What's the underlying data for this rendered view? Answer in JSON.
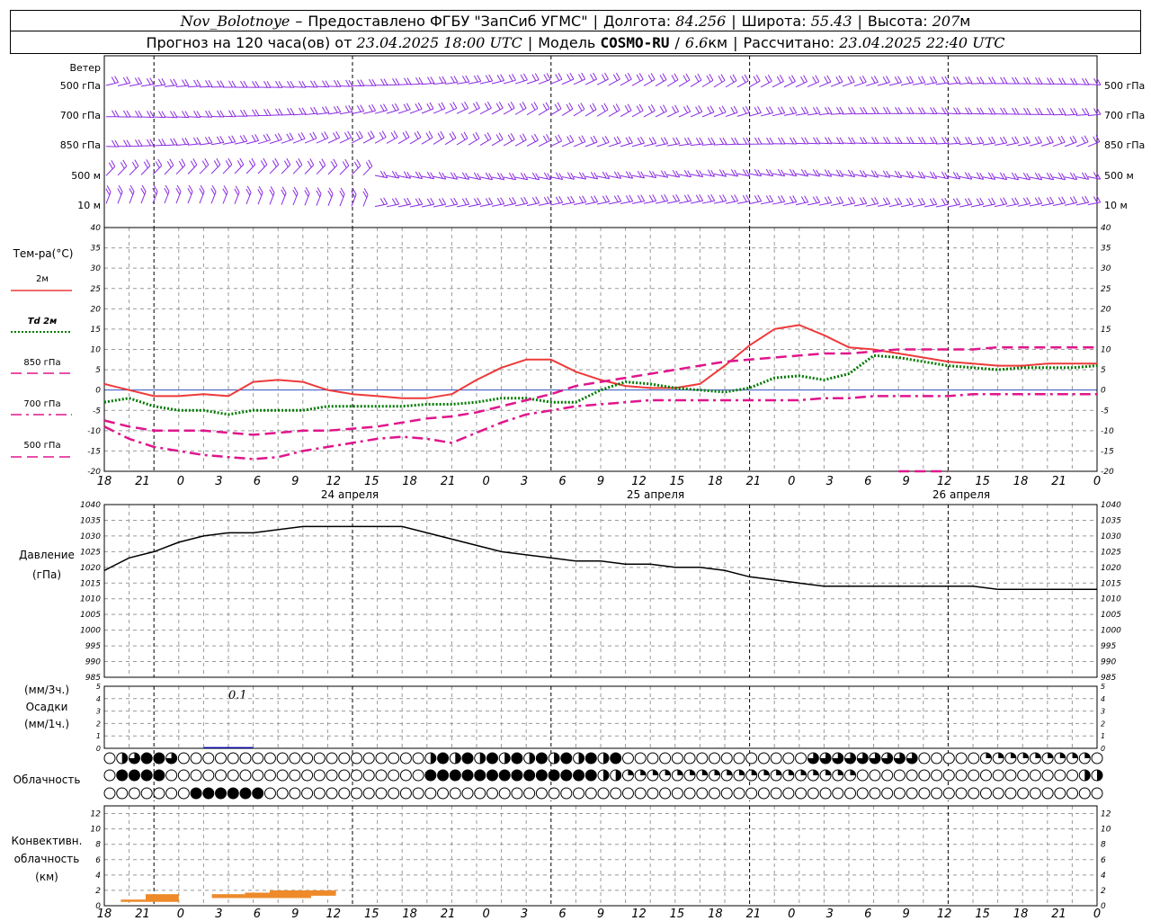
{
  "header": {
    "station": "Nov_Bolotnoye",
    "provider": "Предоставлено ФГБУ \"ЗапСиб УГМС\"",
    "lon_label": "Долгота:",
    "lon_value": "84.256",
    "lat_label": "Широта:",
    "lat_value": "55.43",
    "alt_label": "Высота:",
    "alt_value": "207",
    "alt_unit": "м",
    "forecast_label": "Прогноз на 120 часа(ов) от",
    "forecast_start": "23.04.2025 18:00 UTC",
    "model_label": "Модель",
    "model_name": "COSMO-RU",
    "model_res": "6.6",
    "model_res_unit": "км",
    "calc_label": "Рассчитано:",
    "calc_time": "23.04.2025 22:40 UTC"
  },
  "labels": {
    "wind": "Ветер",
    "wind_levels": [
      "500 гПа",
      "700 гПа",
      "850 гПа",
      "500 м",
      "10 м"
    ],
    "temp": "Тем-ра(°C)",
    "temp_series": [
      "2м",
      "Td 2м",
      "850 гПа",
      "700 гПа",
      "500 гПа"
    ],
    "pressure": "Давление",
    "pressure_unit": "(гПа)",
    "precip_unit_top": "(мм/3ч.)",
    "precip": "Осадки",
    "precip_unit_bottom": "(мм/1ч.)",
    "precip_annotation": "0.1",
    "cloud": "Облачность",
    "conv_line1": "Конвективн.",
    "conv_line2": "облачность",
    "conv_unit": "(км)"
  },
  "x_axis": {
    "hour_labels": [
      "18",
      "21",
      "0",
      "3",
      "6",
      "9",
      "12",
      "15",
      "18",
      "21",
      "0",
      "3",
      "6",
      "9",
      "12",
      "15",
      "18",
      "21",
      "0",
      "3",
      "6",
      "9",
      "12",
      "15",
      "18",
      "21",
      "0"
    ],
    "day_labels": [
      "24 апреля",
      "25 апреля",
      "26 апреля"
    ]
  },
  "colors": {
    "wind": "#8a2be2",
    "t2m": "#ee3a3a",
    "td2m": "#007a00",
    "t850": "#e0158c",
    "t700": "#e0158c",
    "t500": "#e0158c",
    "pressure": "#000000",
    "precip": "#0000aa",
    "conv": "#ee8a2a",
    "cloud_fill": "#000000"
  },
  "chart_data": [
    {
      "type": "line",
      "name": "Тем-ра(°C)",
      "x_hours": [
        0,
        3,
        6,
        9,
        12,
        15,
        18,
        21,
        24,
        27,
        30,
        33,
        36,
        39,
        42,
        45,
        48,
        51,
        54,
        57,
        60,
        63,
        66,
        69,
        72,
        75,
        78,
        81,
        84,
        87,
        90,
        93,
        96,
        99,
        102,
        105,
        108,
        111,
        114,
        117,
        120
      ],
      "ylim": [
        -20,
        40
      ],
      "yticks": [
        -20,
        -15,
        -10,
        -5,
        0,
        5,
        10,
        15,
        20,
        25,
        30,
        35,
        40
      ],
      "series": [
        {
          "name": "2м",
          "style": "solid",
          "values": [
            1.5,
            0,
            -1.5,
            -1.5,
            -1,
            -1.5,
            2,
            2.5,
            2,
            0,
            -1,
            -1.5,
            -2,
            -2,
            -1,
            2.5,
            5.5,
            7.5,
            7.5,
            4.5,
            2.5,
            1,
            0.5,
            0.5,
            1.5,
            6,
            11,
            15,
            16,
            13.5,
            10.5,
            10,
            9,
            8,
            7,
            6.5,
            6,
            6,
            6.5,
            6.5,
            6.5
          ]
        },
        {
          "name": "Td 2м",
          "style": "dotted",
          "values": [
            -3,
            -2,
            -4,
            -5,
            -5,
            -6,
            -5,
            -5,
            -5,
            -4,
            -4,
            -4,
            -4,
            -3.5,
            -3.5,
            -3,
            -2,
            -2,
            -3,
            -3,
            0,
            2,
            1.5,
            0.5,
            0,
            -0.5,
            0.5,
            3,
            3.5,
            2.5,
            4,
            8.5,
            8,
            7,
            6,
            5.5,
            5,
            5.5,
            5.5,
            5.5,
            6
          ]
        },
        {
          "name": "850 гПа",
          "style": "dashed",
          "values": [
            -7.5,
            -9,
            -10,
            -10,
            -10,
            -10.5,
            -11,
            -10.5,
            -10,
            -10,
            -9.5,
            -9,
            -8,
            -7,
            -6.5,
            -5.5,
            -4,
            -2.5,
            -1,
            1,
            2,
            3,
            4,
            5,
            6,
            7,
            7.5,
            8,
            8.5,
            9,
            9,
            9.5,
            10,
            10,
            10,
            10,
            10.5,
            10.5,
            10.5,
            10.5,
            10.5
          ]
        },
        {
          "name": "700 гПа",
          "style": "dashdot",
          "values": [
            -9,
            -12,
            -14,
            -15,
            -16,
            -16.5,
            -17,
            -16.5,
            -15,
            -14,
            -13,
            -12,
            -11.5,
            -12,
            -13,
            -10.5,
            -8,
            -6,
            -5,
            -4,
            -3.5,
            -3,
            -2.5,
            -2.5,
            -2.5,
            -2.5,
            -2.5,
            -2.5,
            -2.5,
            -2,
            -2,
            -1.5,
            -1.5,
            -1.5,
            -1.5,
            -1,
            -1,
            -1,
            -1,
            -1,
            -1
          ]
        },
        {
          "name": "500 гПа",
          "style": "dashed",
          "values": [
            null,
            null,
            null,
            null,
            null,
            null,
            null,
            null,
            null,
            null,
            null,
            null,
            null,
            null,
            null,
            null,
            null,
            null,
            null,
            null,
            null,
            null,
            null,
            null,
            null,
            null,
            null,
            null,
            null,
            null,
            null,
            null,
            -20,
            -20,
            -20,
            null,
            null,
            null,
            null,
            null,
            null
          ]
        }
      ]
    },
    {
      "type": "line",
      "name": "Давление",
      "x_hours": [
        0,
        3,
        6,
        9,
        12,
        15,
        18,
        21,
        24,
        27,
        30,
        33,
        36,
        39,
        42,
        45,
        48,
        51,
        54,
        57,
        60,
        63,
        66,
        69,
        72,
        75,
        78,
        81,
        84,
        87,
        90,
        93,
        96,
        99,
        102,
        105,
        108,
        111,
        114,
        117,
        120
      ],
      "ylim": [
        985,
        1040
      ],
      "yticks": [
        985,
        990,
        995,
        1000,
        1005,
        1010,
        1015,
        1020,
        1025,
        1030,
        1035,
        1040
      ],
      "series": [
        {
          "name": "Давление",
          "values": [
            1019,
            1023,
            1025,
            1028,
            1030,
            1031,
            1031,
            1032,
            1033,
            1033,
            1033,
            1033,
            1033,
            1031,
            1029,
            1027,
            1025,
            1024,
            1023,
            1022,
            1022,
            1021,
            1021,
            1020,
            1020,
            1019,
            1017,
            1016,
            1015,
            1014,
            1014,
            1014,
            1014,
            1014,
            1014,
            1014,
            1013,
            1013,
            1013,
            1013,
            1013
          ]
        }
      ]
    },
    {
      "type": "bar",
      "name": "Осадки",
      "ylim": [
        0,
        5
      ],
      "yticks": [
        0,
        1,
        2,
        3,
        4,
        5
      ],
      "x_hours": [
        12,
        15
      ],
      "values": [
        0.1,
        0.1
      ]
    },
    {
      "type": "bar",
      "name": "Конвективн. облачность",
      "ylim": [
        0,
        13
      ],
      "yticks": [
        0,
        2,
        4,
        6,
        8,
        10,
        12
      ],
      "segments": [
        {
          "x0": 2,
          "x1": 5,
          "base": 0.5,
          "top": 0.8
        },
        {
          "x0": 5,
          "x1": 9,
          "base": 0.5,
          "top": 1.5
        },
        {
          "x0": 13,
          "x1": 17,
          "base": 1,
          "top": 1.5
        },
        {
          "x0": 17,
          "x1": 20,
          "base": 1,
          "top": 1.7
        },
        {
          "x0": 20,
          "x1": 25,
          "base": 1,
          "top": 2
        },
        {
          "x0": 25,
          "x1": 28,
          "base": 1.3,
          "top": 2
        }
      ]
    }
  ]
}
